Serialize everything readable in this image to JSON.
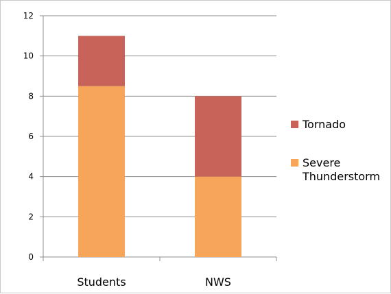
{
  "chart_data": {
    "type": "bar",
    "stacked": true,
    "categories": [
      "Students",
      "NWS"
    ],
    "series": [
      {
        "name": "Severe Thunderstorm",
        "values": [
          8.5,
          4
        ],
        "color": "#f6a55b"
      },
      {
        "name": "Tornado",
        "values": [
          2.5,
          4
        ],
        "color": "#c8635a"
      }
    ],
    "title": "",
    "xlabel": "",
    "ylabel": "",
    "ylim": [
      0,
      12
    ],
    "yticks": [
      "0",
      "2",
      "4",
      "6",
      "8",
      "10",
      "12"
    ],
    "grid": true,
    "legend": "right",
    "legend_items": [
      {
        "label_lines": [
          "Tornado"
        ],
        "color": "#c8635a"
      },
      {
        "label_lines": [
          "Severe",
          "Thunderstorm"
        ],
        "color": "#f6a55b"
      }
    ]
  }
}
